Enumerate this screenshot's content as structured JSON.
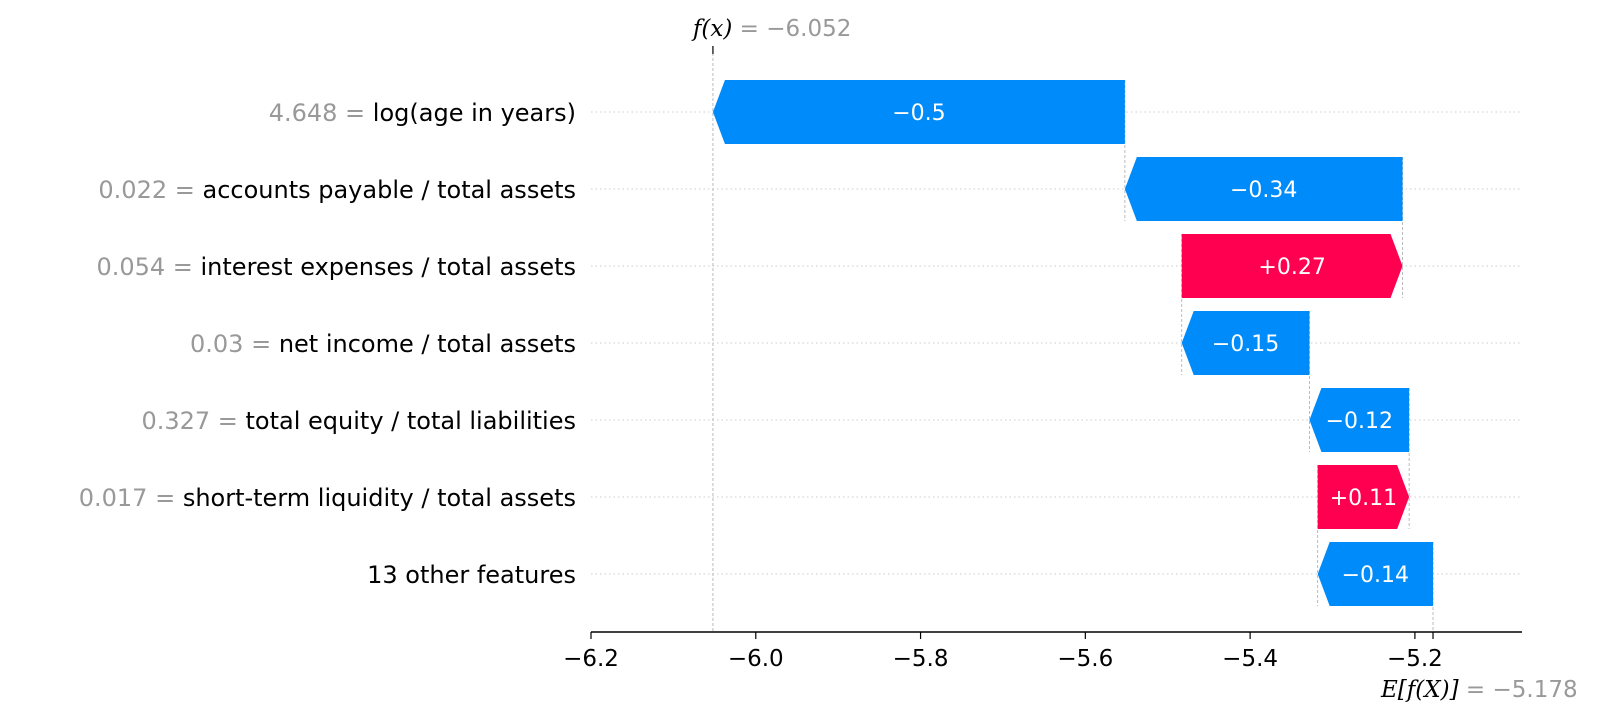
{
  "chart_data": {
    "type": "waterfall",
    "fx_label": "f(x)",
    "fx_value": -6.052,
    "efx_label": "E[f(X)]",
    "efx_value": -5.178,
    "xlim": [
      -6.2,
      -5.07
    ],
    "x_ticks": [
      -6.2,
      -6.0,
      -5.8,
      -5.6,
      -5.4,
      -5.2
    ],
    "x_tick_labels": [
      "−6.2",
      "−6.0",
      "−5.8",
      "−5.6",
      "−5.4",
      "−5.2"
    ],
    "rows": [
      {
        "value": "4.648",
        "feature": "log(age in years)",
        "shap": -0.5,
        "start": -5.552,
        "end": -6.052,
        "bar_label": "−0.5"
      },
      {
        "value": "0.022",
        "feature": "accounts payable / total assets",
        "shap": -0.34,
        "start": -5.215,
        "end": -5.552,
        "bar_label": "−0.34"
      },
      {
        "value": "0.054",
        "feature": "interest expenses / total assets",
        "shap": 0.27,
        "start": -5.483,
        "end": -5.215,
        "bar_label": "+0.27"
      },
      {
        "value": "0.03",
        "feature": "net income / total assets",
        "shap": -0.15,
        "start": -5.328,
        "end": -5.483,
        "bar_label": "−0.15"
      },
      {
        "value": "0.327",
        "feature": "total equity / total liabilities",
        "shap": -0.12,
        "start": -5.207,
        "end": -5.328,
        "bar_label": "−0.12"
      },
      {
        "value": "0.017",
        "feature": "short-term liquidity / total assets",
        "shap": 0.11,
        "start": -5.318,
        "end": -5.207,
        "bar_label": "+0.11"
      },
      {
        "value": "",
        "feature": "13 other features",
        "shap": -0.14,
        "start": -5.178,
        "end": -5.318,
        "bar_label": "−0.14"
      }
    ],
    "colors": {
      "positive": "#ff0051",
      "negative": "#008bfb",
      "axis": "#000000",
      "muted": "#999999",
      "grid": "#cccccc"
    }
  }
}
